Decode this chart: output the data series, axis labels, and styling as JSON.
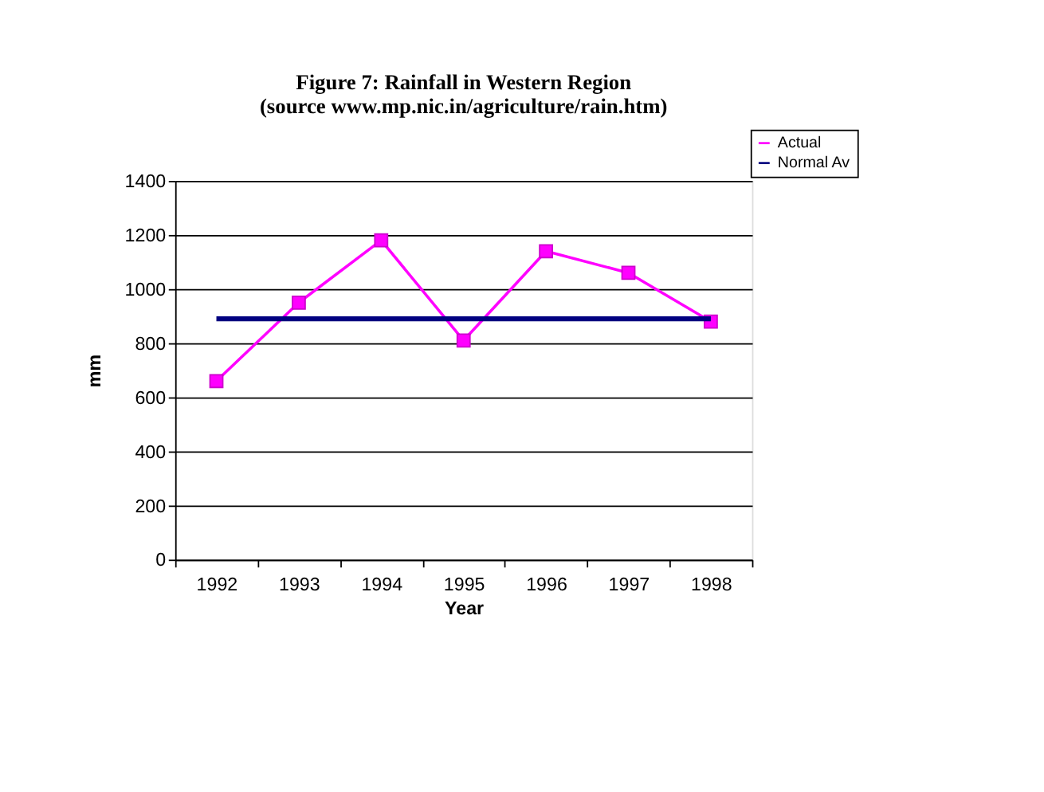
{
  "chart_data": {
    "type": "line",
    "title": "Figure 7: Rainfall in Western Region",
    "subtitle": "(source www.mp.nic.in/agriculture/rain.htm)",
    "xlabel": "Year",
    "ylabel": "mm",
    "categories": [
      "1992",
      "1993",
      "1994",
      "1995",
      "1996",
      "1997",
      "1998"
    ],
    "series": [
      {
        "name": "Actual",
        "color": "#ff00ff",
        "marker": "square",
        "values": [
          660,
          950,
          1180,
          810,
          1140,
          1060,
          880
        ]
      },
      {
        "name": "Normal Av",
        "color": "#000080",
        "marker": "none",
        "values": [
          890,
          890,
          890,
          890,
          890,
          890,
          890
        ]
      }
    ],
    "ylim": [
      0,
      1400
    ],
    "yticks": [
      0,
      200,
      400,
      600,
      800,
      1000,
      1200,
      1400
    ],
    "grid": "y",
    "legend": "top right"
  }
}
